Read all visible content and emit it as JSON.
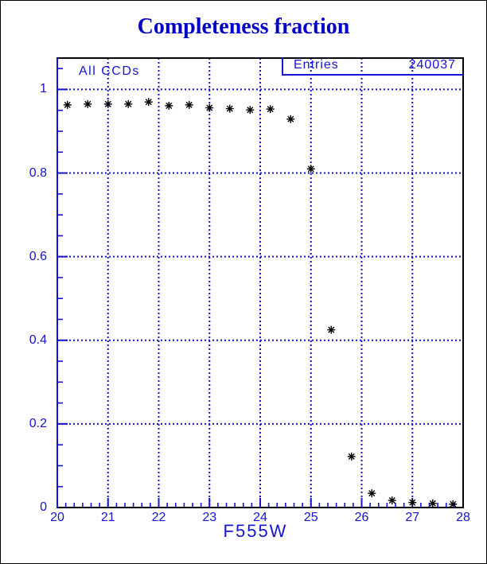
{
  "chart_data": {
    "type": "scatter",
    "title": "Completeness fraction",
    "annotation": "All CCDs",
    "stats": {
      "label": "Entries",
      "value": "240037"
    },
    "xlabel": "F555W",
    "ylabel": "",
    "xlim": [
      20,
      28
    ],
    "ylim": [
      0,
      1.075
    ],
    "x": [
      20.2,
      20.6,
      21.0,
      21.4,
      21.8,
      22.2,
      22.6,
      23.0,
      23.4,
      23.8,
      24.2,
      24.6,
      25.0,
      25.4,
      25.8,
      26.2,
      26.6,
      27.0,
      27.4,
      27.8
    ],
    "y": [
      0.963,
      0.965,
      0.965,
      0.965,
      0.97,
      0.961,
      0.963,
      0.956,
      0.954,
      0.951,
      0.953,
      0.929,
      0.81,
      0.425,
      0.122,
      0.034,
      0.017,
      0.012,
      0.01,
      0.008
    ],
    "x_tick_values": [
      20,
      21,
      22,
      23,
      24,
      25,
      26,
      27,
      28
    ],
    "x_tick_labels": [
      "20",
      "21",
      "22",
      "23",
      "24",
      "25",
      "26",
      "27",
      "28"
    ],
    "y_tick_values": [
      0,
      0.2,
      0.4,
      0.6,
      0.8,
      1.0
    ],
    "y_tick_labels": [
      "0",
      "0.2",
      "0.4",
      "0.6",
      "0.8",
      "1"
    ],
    "x_gridlines": [
      21,
      22,
      23,
      24,
      25,
      26,
      27
    ],
    "y_gridlines": [
      0.2,
      0.4,
      0.6,
      0.8,
      1.0
    ],
    "x_minor_divisions": 6,
    "y_minor_step": 0.05,
    "marker": "asterisk",
    "grid_style": "dotted",
    "legend_position": "top-right",
    "colors": {
      "axis_blue": "#1414d2",
      "grid_blue": "#1414d2",
      "frame_black": "#000000",
      "marker_black": "#000000",
      "title_blue": "#0000c6"
    }
  }
}
